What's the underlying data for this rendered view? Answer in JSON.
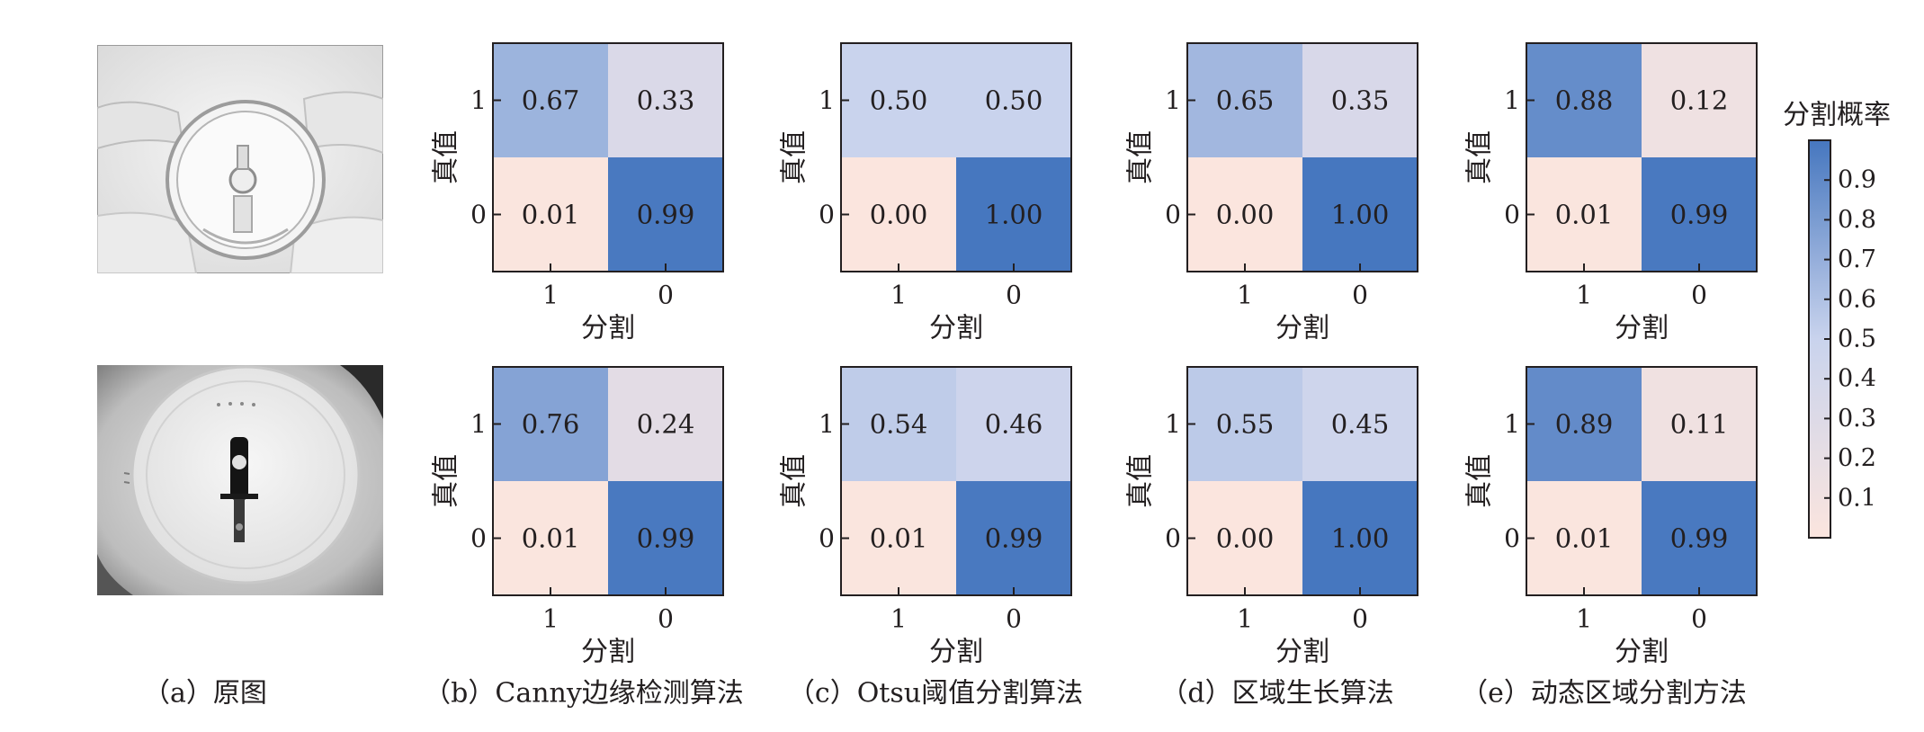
{
  "subfigure_labels": {
    "a": "（a）原图",
    "b": "（b）Canny边缘检测算法",
    "c": "（c）Otsu阈值分割算法",
    "d": "（d）区域生长算法",
    "e": "（e）动态区域分割方法"
  },
  "colorbar": {
    "title": "分割概率",
    "ticks": [
      "0.1",
      "0.2",
      "0.3",
      "0.4",
      "0.5",
      "0.6",
      "0.7",
      "0.8",
      "0.9"
    ],
    "range": [
      0,
      1
    ],
    "colors": {
      "low": "#fbe5de",
      "mid": "#c9d3ed",
      "high": "#4677bf"
    }
  },
  "chart_data": [
    {
      "type": "heatmap",
      "row": 1,
      "method": "b",
      "xlabel": "分割",
      "ylabel": "真值",
      "x_ticks": [
        "1",
        "0"
      ],
      "y_ticks": [
        "1",
        "0"
      ],
      "cells": [
        [
          "0.67",
          "0.33"
        ],
        [
          "0.01",
          "0.99"
        ]
      ]
    },
    {
      "type": "heatmap",
      "row": 1,
      "method": "c",
      "xlabel": "分割",
      "ylabel": "真值",
      "x_ticks": [
        "1",
        "0"
      ],
      "y_ticks": [
        "1",
        "0"
      ],
      "cells": [
        [
          "0.50",
          "0.50"
        ],
        [
          "0.00",
          "1.00"
        ]
      ]
    },
    {
      "type": "heatmap",
      "row": 1,
      "method": "d",
      "xlabel": "分割",
      "ylabel": "真值",
      "x_ticks": [
        "1",
        "0"
      ],
      "y_ticks": [
        "1",
        "0"
      ],
      "cells": [
        [
          "0.65",
          "0.35"
        ],
        [
          "0.00",
          "1.00"
        ]
      ]
    },
    {
      "type": "heatmap",
      "row": 1,
      "method": "e",
      "xlabel": "分割",
      "ylabel": "真值",
      "x_ticks": [
        "1",
        "0"
      ],
      "y_ticks": [
        "1",
        "0"
      ],
      "cells": [
        [
          "0.88",
          "0.12"
        ],
        [
          "0.01",
          "0.99"
        ]
      ]
    },
    {
      "type": "heatmap",
      "row": 2,
      "method": "b",
      "xlabel": "分割",
      "ylabel": "真值",
      "x_ticks": [
        "1",
        "0"
      ],
      "y_ticks": [
        "1",
        "0"
      ],
      "cells": [
        [
          "0.76",
          "0.24"
        ],
        [
          "0.01",
          "0.99"
        ]
      ]
    },
    {
      "type": "heatmap",
      "row": 2,
      "method": "c",
      "xlabel": "分割",
      "ylabel": "真值",
      "x_ticks": [
        "1",
        "0"
      ],
      "y_ticks": [
        "1",
        "0"
      ],
      "cells": [
        [
          "0.54",
          "0.46"
        ],
        [
          "0.01",
          "0.99"
        ]
      ]
    },
    {
      "type": "heatmap",
      "row": 2,
      "method": "d",
      "xlabel": "分割",
      "ylabel": "真值",
      "x_ticks": [
        "1",
        "0"
      ],
      "y_ticks": [
        "1",
        "0"
      ],
      "cells": [
        [
          "0.55",
          "0.45"
        ],
        [
          "0.00",
          "1.00"
        ]
      ]
    },
    {
      "type": "heatmap",
      "row": 2,
      "method": "e",
      "xlabel": "分割",
      "ylabel": "真值",
      "x_ticks": [
        "1",
        "0"
      ],
      "y_ticks": [
        "1",
        "0"
      ],
      "cells": [
        [
          "0.89",
          "0.11"
        ],
        [
          "0.01",
          "0.99"
        ]
      ]
    }
  ]
}
